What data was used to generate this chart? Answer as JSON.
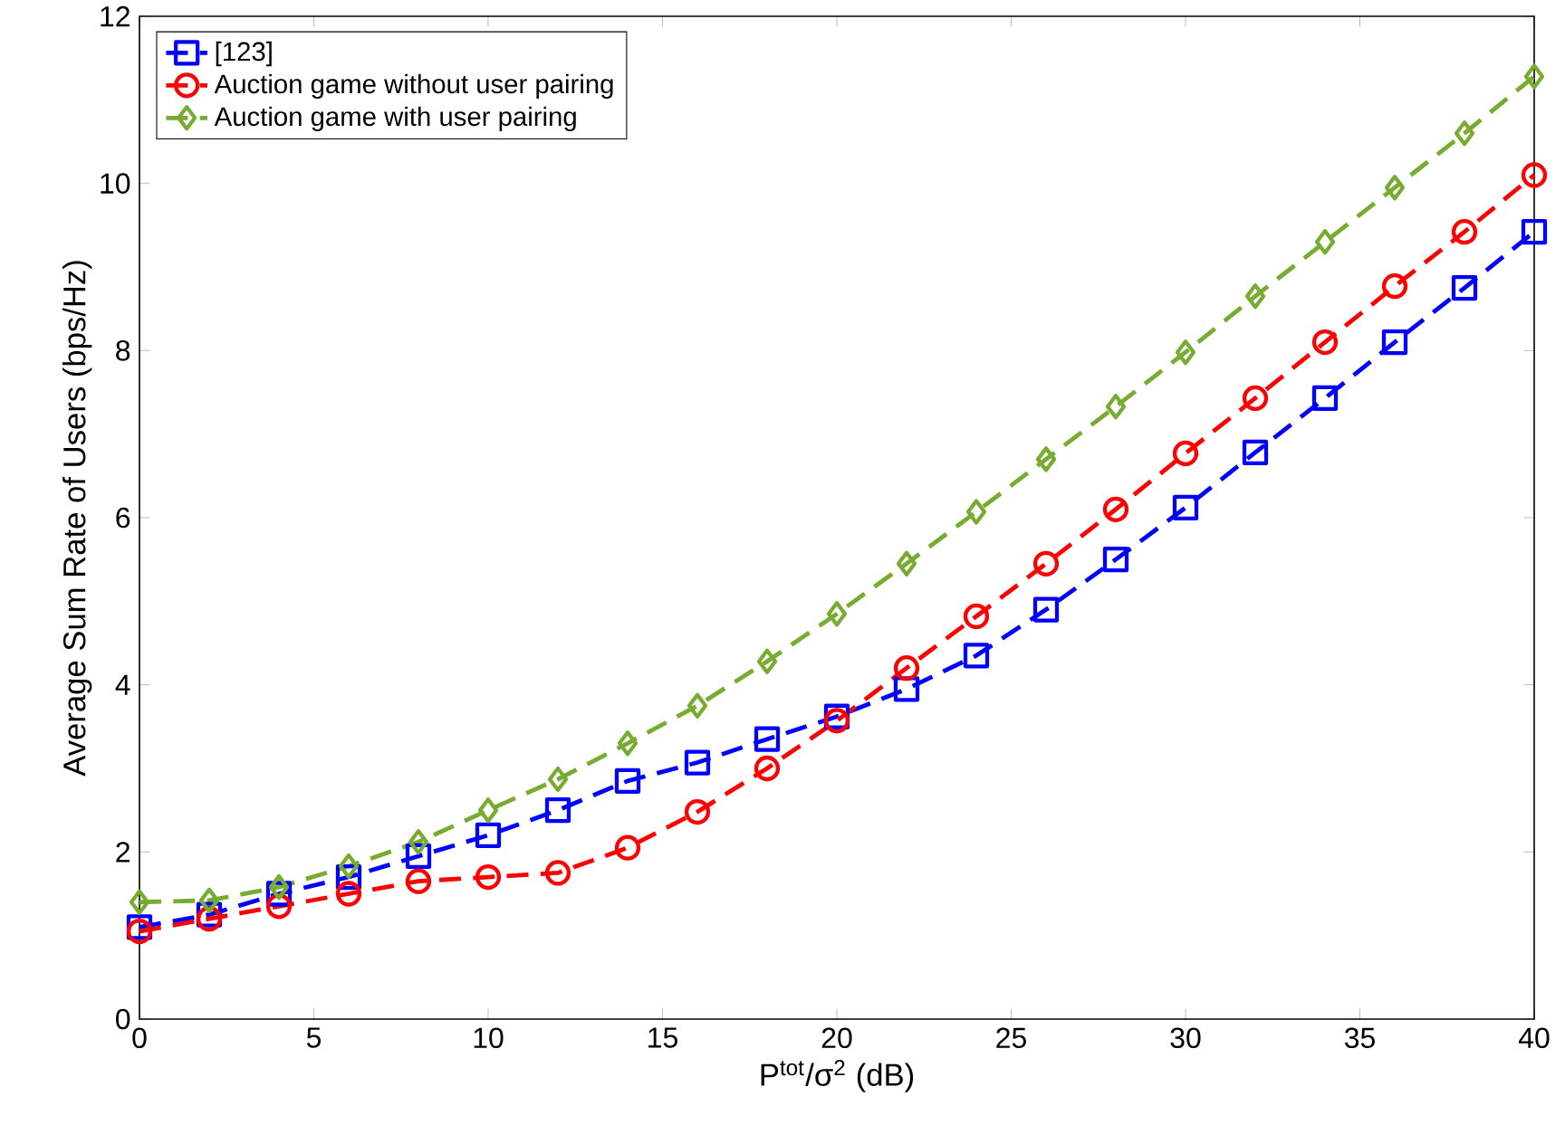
{
  "chart_data": {
    "type": "line",
    "xlabel": "P$^{tot}$/σ$^{2}$ (dB)",
    "ylabel": "Average Sum Rate of Users (bps/Hz)",
    "x": [
      0,
      2,
      4,
      6,
      8,
      10,
      12,
      14,
      16,
      18,
      20,
      22,
      24,
      26,
      28,
      30,
      32,
      34,
      36,
      38,
      40
    ],
    "xlim": [
      0,
      40
    ],
    "xticks": [
      0,
      5,
      10,
      15,
      20,
      25,
      30,
      35,
      40
    ],
    "ylim": [
      0,
      12
    ],
    "yticks": [
      0,
      2,
      4,
      6,
      8,
      10,
      12
    ],
    "grid": false,
    "legend": "top left",
    "line_style": "dashed",
    "series": [
      {
        "name": "[123]",
        "color": "#0000ff",
        "marker": "square",
        "values": [
          1.1,
          1.25,
          1.5,
          1.7,
          1.95,
          2.2,
          2.5,
          2.85,
          3.07,
          3.35,
          3.62,
          3.95,
          4.35,
          4.9,
          5.5,
          6.12,
          6.78,
          7.43,
          8.1,
          8.75,
          9.42
        ]
      },
      {
        "name": "Auction game without user pairing",
        "color": "#ff0000",
        "marker": "circle",
        "values": [
          1.05,
          1.2,
          1.35,
          1.5,
          1.65,
          1.7,
          1.75,
          2.05,
          2.48,
          3.0,
          3.57,
          4.2,
          4.82,
          5.45,
          6.1,
          6.77,
          7.43,
          8.1,
          8.77,
          9.42,
          10.1
        ]
      },
      {
        "name": "Auction game with user pairing",
        "color": "#77ac30",
        "marker": "diamond",
        "values": [
          1.4,
          1.42,
          1.58,
          1.83,
          2.12,
          2.5,
          2.87,
          3.3,
          3.75,
          4.28,
          4.85,
          5.45,
          6.07,
          6.7,
          7.33,
          7.98,
          8.65,
          9.3,
          9.95,
          10.6,
          11.28
        ]
      }
    ]
  }
}
